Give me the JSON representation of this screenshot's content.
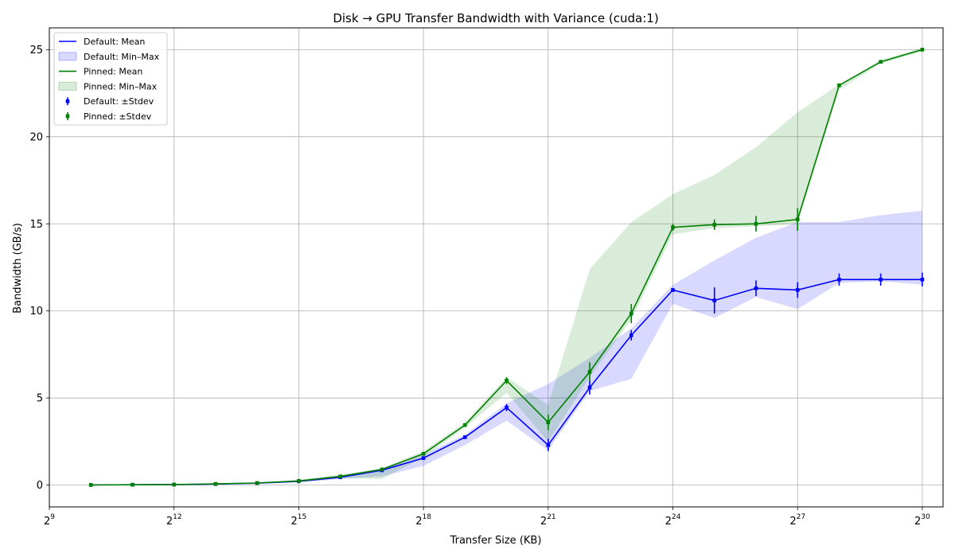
{
  "chart_data": {
    "type": "line",
    "title": "Disk → GPU Transfer Bandwidth with Variance (cuda:1)",
    "xlabel": "Transfer Size (KB)",
    "ylabel": "Bandwidth (GB/s)",
    "x_scale": "log2",
    "x_tick_exponents": [
      9,
      12,
      15,
      18,
      21,
      24,
      27,
      30
    ],
    "x_tick_base": "2",
    "xlim_log2": [
      9,
      30.5
    ],
    "ylim": [
      -1.25,
      26.25
    ],
    "y_ticks": [
      0,
      5,
      10,
      15,
      20,
      25
    ],
    "y_tick_labels": [
      "0",
      "5",
      "10",
      "15",
      "20",
      "25"
    ],
    "grid": true,
    "legend_position": "top-left",
    "x_log2": [
      10,
      11,
      12,
      13,
      14,
      15,
      16,
      17,
      18,
      19,
      20,
      21,
      22,
      23,
      24,
      25,
      26,
      27,
      28,
      29,
      30
    ],
    "series": [
      {
        "name": "Default",
        "color": "#0000ff",
        "band_color": "#0000ff",
        "mean_label": "Default: Mean",
        "band_label": "Default: Min–Max",
        "err_label": "Default: ±Stdev",
        "mean": [
          0.01,
          0.02,
          0.03,
          0.06,
          0.11,
          0.22,
          0.45,
          0.85,
          1.55,
          2.75,
          4.45,
          2.3,
          5.6,
          8.6,
          11.2,
          10.6,
          11.3,
          11.2,
          11.8,
          11.8,
          11.8
        ],
        "min": [
          0.0,
          0.01,
          0.02,
          0.04,
          0.08,
          0.15,
          0.35,
          0.5,
          1.1,
          2.3,
          3.7,
          2.0,
          5.4,
          6.1,
          10.4,
          9.6,
          10.8,
          10.1,
          11.6,
          11.7,
          11.5
        ],
        "max": [
          0.02,
          0.03,
          0.05,
          0.08,
          0.14,
          0.28,
          0.55,
          0.95,
          1.75,
          2.9,
          4.7,
          5.8,
          7.3,
          9.0,
          11.5,
          12.9,
          14.2,
          15.1,
          15.1,
          15.5,
          15.75
        ],
        "stdev": [
          0.01,
          0.01,
          0.01,
          0.02,
          0.02,
          0.03,
          0.05,
          0.08,
          0.1,
          0.1,
          0.2,
          0.35,
          0.4,
          0.3,
          0.1,
          0.75,
          0.45,
          0.45,
          0.35,
          0.35,
          0.4
        ]
      },
      {
        "name": "Pinned",
        "color": "#008000",
        "band_color": "#008000",
        "mean_label": "Pinned: Mean",
        "band_label": "Pinned: Min–Max",
        "err_label": "Pinned: ±Stdev",
        "mean": [
          0.01,
          0.02,
          0.03,
          0.07,
          0.12,
          0.24,
          0.5,
          0.9,
          1.8,
          3.45,
          6.0,
          3.6,
          6.5,
          9.85,
          14.8,
          14.95,
          15.0,
          15.25,
          22.95,
          24.3,
          25.0
        ],
        "min": [
          0.0,
          0.01,
          0.02,
          0.05,
          0.09,
          0.18,
          0.4,
          0.35,
          1.6,
          3.3,
          5.3,
          2.5,
          6.2,
          9.5,
          14.4,
          14.75,
          14.85,
          15.0,
          22.7,
          24.2,
          24.9
        ],
        "max": [
          0.02,
          0.03,
          0.05,
          0.09,
          0.15,
          0.3,
          0.6,
          0.95,
          1.95,
          3.6,
          6.2,
          4.6,
          12.4,
          15.1,
          16.7,
          17.8,
          19.4,
          21.4,
          23.0,
          24.4,
          25.1
        ],
        "stdev": [
          0.01,
          0.01,
          0.01,
          0.02,
          0.02,
          0.03,
          0.05,
          0.05,
          0.08,
          0.1,
          0.2,
          0.45,
          0.55,
          0.55,
          0.2,
          0.3,
          0.45,
          0.65,
          0.1,
          0.1,
          0.1
        ]
      }
    ]
  }
}
